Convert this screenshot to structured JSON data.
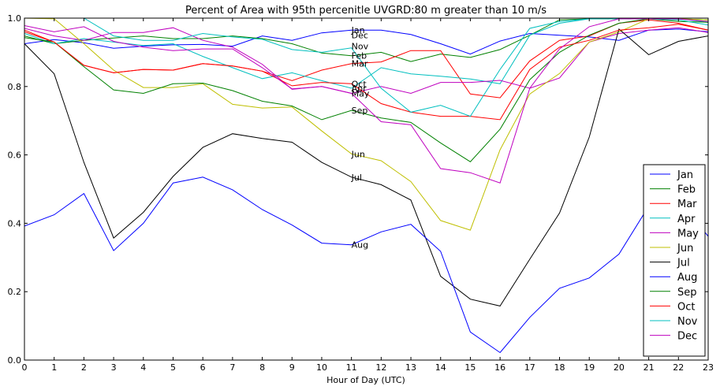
{
  "chart_data": {
    "type": "line",
    "title": "Percent of Area with 95th percenitle UVGRD:80 m greater than 10 m/s",
    "xlabel": "Hour of Day (UTC)",
    "ylabel": "",
    "xlim": [
      0,
      23
    ],
    "ylim": [
      0.0,
      1.0
    ],
    "x": [
      0,
      1,
      2,
      3,
      4,
      5,
      6,
      7,
      8,
      9,
      10,
      11,
      12,
      13,
      14,
      15,
      16,
      17,
      18,
      19,
      20,
      21,
      22,
      23
    ],
    "x_ticks": [
      "0",
      "1",
      "2",
      "3",
      "4",
      "5",
      "6",
      "7",
      "8",
      "9",
      "10",
      "11",
      "12",
      "13",
      "14",
      "15",
      "16",
      "17",
      "18",
      "19",
      "20",
      "21",
      "22",
      "23"
    ],
    "y_ticks": [
      "0.0",
      "0.2",
      "0.4",
      "0.6",
      "0.8",
      "1.0"
    ],
    "grid": false,
    "legend_position": "lower-right",
    "series": [
      {
        "name": "Jan",
        "color": "#0000ff",
        "values": [
          0.925,
          0.937,
          0.928,
          0.912,
          0.918,
          0.922,
          0.923,
          0.918,
          0.948,
          0.935,
          0.957,
          0.965,
          0.965,
          0.952,
          0.925,
          0.895,
          0.933,
          0.955,
          0.95,
          0.945,
          0.935,
          0.965,
          0.968,
          0.96
        ]
      },
      {
        "name": "Feb",
        "color": "#008000",
        "values": [
          0.948,
          0.925,
          0.935,
          0.942,
          0.948,
          0.94,
          0.94,
          0.948,
          0.94,
          0.925,
          0.898,
          0.89,
          0.9,
          0.873,
          0.895,
          0.885,
          0.908,
          0.95,
          0.995,
          0.998,
          0.998,
          1.0,
          0.998,
          0.995
        ]
      },
      {
        "name": "Mar",
        "color": "#ff0000",
        "values": [
          0.965,
          0.93,
          0.862,
          0.84,
          0.85,
          0.848,
          0.867,
          0.86,
          0.845,
          0.817,
          0.848,
          0.867,
          0.872,
          0.905,
          0.905,
          0.778,
          0.767,
          0.875,
          0.935,
          0.948,
          0.985,
          0.995,
          0.985,
          0.965
        ]
      },
      {
        "name": "Apr",
        "color": "#00bfbf",
        "values": [
          0.955,
          0.925,
          0.94,
          0.93,
          0.92,
          0.925,
          0.888,
          0.855,
          0.823,
          0.84,
          0.817,
          0.795,
          0.855,
          0.837,
          0.83,
          0.822,
          0.808,
          0.95,
          0.985,
          0.998,
          0.998,
          0.998,
          0.998,
          0.988
        ]
      },
      {
        "name": "May",
        "color": "#bf00bf",
        "values": [
          0.97,
          0.948,
          0.935,
          0.958,
          0.958,
          0.972,
          0.935,
          0.915,
          0.865,
          0.792,
          0.8,
          0.78,
          0.8,
          0.78,
          0.812,
          0.812,
          0.818,
          0.795,
          0.825,
          0.93,
          0.955,
          0.965,
          0.972,
          0.958
        ]
      },
      {
        "name": "Jun",
        "color": "#bfbf00",
        "values": [
          1.0,
          0.998,
          0.925,
          0.848,
          0.797,
          0.797,
          0.808,
          0.748,
          0.737,
          0.74,
          0.67,
          0.603,
          0.583,
          0.522,
          0.408,
          0.38,
          0.615,
          0.778,
          0.838,
          0.93,
          0.96,
          0.998,
          0.998,
          0.995
        ]
      },
      {
        "name": "Jul",
        "color": "#000000",
        "values": [
          0.925,
          0.837,
          0.578,
          0.357,
          0.432,
          0.537,
          0.622,
          0.662,
          0.648,
          0.637,
          0.578,
          0.535,
          0.513,
          0.468,
          0.245,
          0.178,
          0.158,
          0.295,
          0.43,
          0.652,
          0.968,
          0.893,
          0.932,
          0.948
        ]
      },
      {
        "name": "Aug",
        "color": "#0000ff",
        "values": [
          0.392,
          0.425,
          0.487,
          0.32,
          0.4,
          0.518,
          0.535,
          0.498,
          0.44,
          0.395,
          0.342,
          0.337,
          0.375,
          0.397,
          0.318,
          0.082,
          0.022,
          0.125,
          0.21,
          0.24,
          0.31,
          0.45,
          0.47,
          0.362
        ]
      },
      {
        "name": "Sep",
        "color": "#008000",
        "values": [
          0.943,
          0.93,
          0.858,
          0.79,
          0.78,
          0.808,
          0.81,
          0.788,
          0.757,
          0.743,
          0.703,
          0.73,
          0.708,
          0.695,
          0.635,
          0.58,
          0.675,
          0.82,
          0.9,
          0.95,
          0.985,
          0.998,
          0.99,
          0.988
        ]
      },
      {
        "name": "Oct",
        "color": "#ff0000",
        "values": [
          0.96,
          0.93,
          0.862,
          0.84,
          0.85,
          0.848,
          0.867,
          0.86,
          0.845,
          0.802,
          0.812,
          0.808,
          0.75,
          0.725,
          0.713,
          0.713,
          0.703,
          0.85,
          0.915,
          0.935,
          0.965,
          0.972,
          0.982,
          0.965
        ]
      },
      {
        "name": "Nov",
        "color": "#00bfbf",
        "values": [
          1.0,
          1.0,
          1.0,
          0.948,
          0.935,
          0.935,
          0.955,
          0.945,
          0.938,
          0.908,
          0.9,
          0.913,
          0.795,
          0.725,
          0.745,
          0.713,
          0.85,
          0.97,
          0.99,
          0.998,
          1.0,
          0.998,
          0.995,
          0.98
        ]
      },
      {
        "name": "Dec",
        "color": "#bf00bf",
        "values": [
          0.978,
          0.96,
          0.975,
          0.932,
          0.915,
          0.905,
          0.91,
          0.91,
          0.855,
          0.793,
          0.8,
          0.78,
          0.697,
          0.688,
          0.56,
          0.548,
          0.518,
          0.795,
          0.91,
          0.975,
          0.998,
          0.998,
          0.998,
          0.99
        ]
      }
    ],
    "annotations": [
      {
        "text": "Jan",
        "x": 11,
        "y": 0.965
      },
      {
        "text": "Dec",
        "x": 11,
        "y": 0.95
      },
      {
        "text": "Nov",
        "x": 11,
        "y": 0.918
      },
      {
        "text": "Feb",
        "x": 11,
        "y": 0.89
      },
      {
        "text": "Mar",
        "x": 11,
        "y": 0.867
      },
      {
        "text": "Oct",
        "x": 11,
        "y": 0.808
      },
      {
        "text": "Apr",
        "x": 11,
        "y": 0.795
      },
      {
        "text": "May",
        "x": 11,
        "y": 0.78
      },
      {
        "text": "Sep",
        "x": 11,
        "y": 0.73
      },
      {
        "text": "Jun",
        "x": 11,
        "y": 0.603
      },
      {
        "text": "Jul",
        "x": 11,
        "y": 0.535
      },
      {
        "text": "Aug",
        "x": 11,
        "y": 0.337
      }
    ]
  }
}
